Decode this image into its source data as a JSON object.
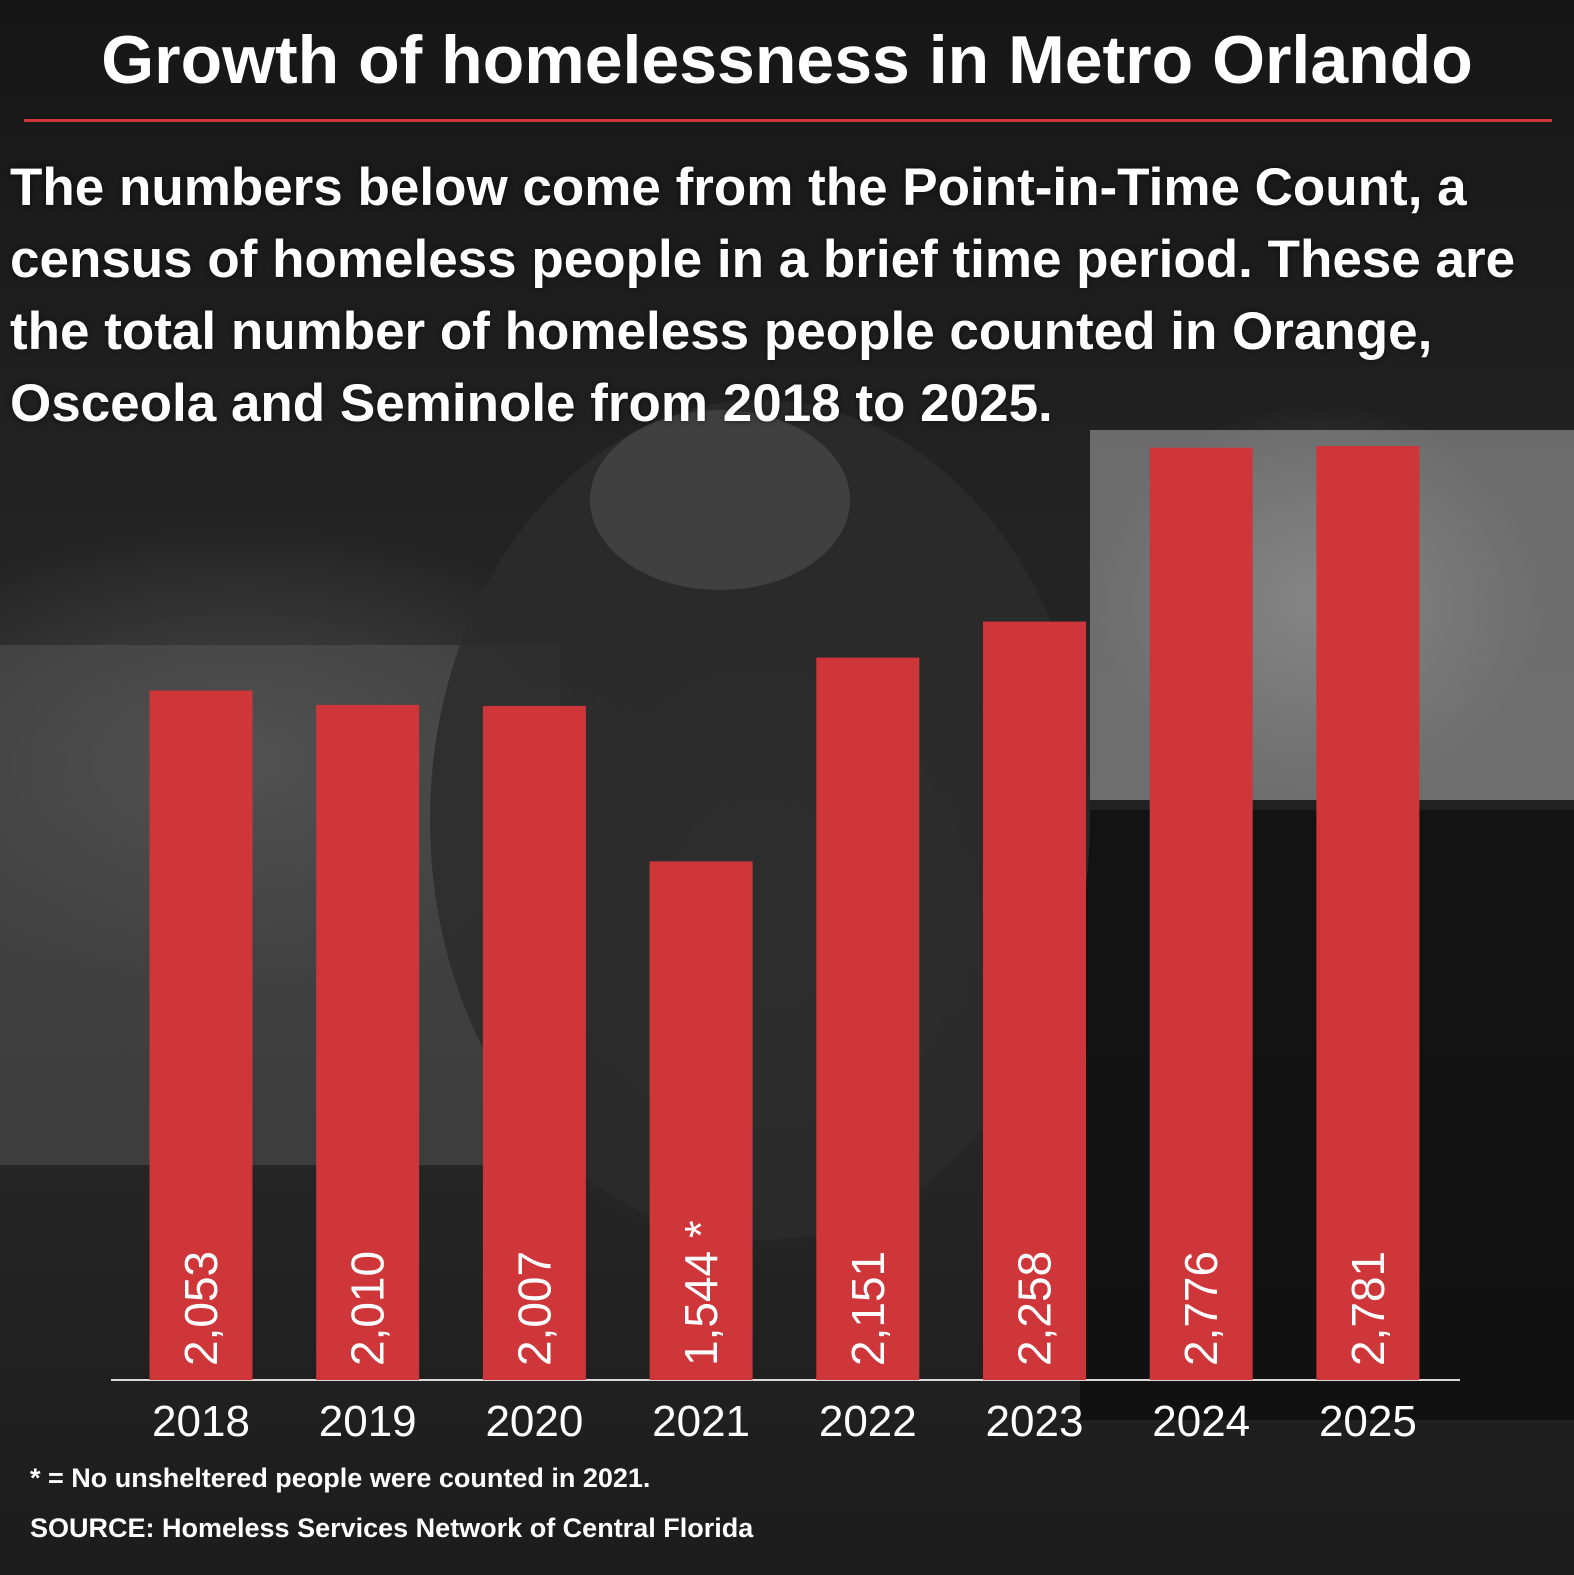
{
  "title": "Growth of homelessness in Metro Orlando",
  "subtitle": "The numbers below come from the Point-in-Time Count, a census of homeless people in a brief time period. These are the total number of homeless people counted in Orange, Osceola and Seminole from 2018 to 2025.",
  "footnote": "* = No unsheltered people were counted in 2021.",
  "source": "SOURCE: Homeless Services Network of Central Florida",
  "colors": {
    "bar": "#cf363a",
    "text": "#ffffff",
    "axis": "#d9d9d9"
  },
  "chart_data": {
    "type": "bar",
    "categories": [
      "2018",
      "2019",
      "2020",
      "2021",
      "2022",
      "2023",
      "2024",
      "2025"
    ],
    "values": [
      2053,
      2010,
      2007,
      1544,
      2151,
      2258,
      2776,
      2781
    ],
    "data_labels": [
      "2,053",
      "2,010",
      "2,007",
      "1,544 *",
      "2,151",
      "2,258",
      "2,776",
      "2,781"
    ],
    "ylim": [
      0,
      2781
    ],
    "grid": false,
    "legend": "none"
  }
}
